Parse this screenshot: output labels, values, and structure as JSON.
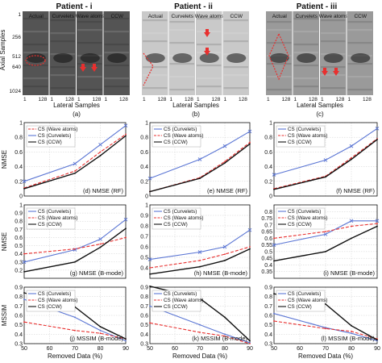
{
  "images": {
    "patients": [
      {
        "title": "Patient - i",
        "letter": "(a)"
      },
      {
        "title": "Patient - ii",
        "letter": "(b)"
      },
      {
        "title": "Patient - iii",
        "letter": "(c)"
      }
    ],
    "col_labels": [
      "Actual",
      "Curvelets",
      "Wave atoms",
      "CCW"
    ],
    "y_label": "Axial Samples",
    "x_label": "Lateral Samples",
    "y_ticks": [
      "256",
      "512",
      "640",
      "1024"
    ],
    "x_ticks": [
      "1",
      "128"
    ],
    "left_axis_top_tick": "1",
    "colors": {
      "patient_i_bg": "#545454",
      "patient_ii_bg": "#c9c9c9",
      "patient_iii_bg": "#9a9a9a",
      "roi": "#e8302f"
    }
  },
  "chart_data": [
    {
      "id": "d",
      "type": "line",
      "row": 0,
      "col": 0,
      "label": "(d) NMSE (RF)",
      "ylabel": "NMSE",
      "ylim": [
        0,
        1
      ],
      "yticks": [
        "0",
        "0.2",
        "0.4",
        "0.6",
        "0.8",
        "1"
      ],
      "x": [
        50,
        70,
        80,
        90
      ],
      "xticks": [],
      "legend": [
        "CS (Wave atoms)",
        "CS (Curvelets)",
        "CS (CCW)"
      ],
      "series": [
        {
          "name": "CS (Curvelets)",
          "color": "#5b76d4",
          "dash": "none",
          "marker": "x",
          "values": [
            0.2,
            0.44,
            0.7,
            0.96
          ]
        },
        {
          "name": "CS (Wave atoms)",
          "color": "#e8302f",
          "dash": "4,2",
          "marker": "none",
          "values": [
            0.11,
            0.34,
            0.6,
            0.84
          ]
        },
        {
          "name": "CS (CCW)",
          "color": "#111111",
          "dash": "none",
          "marker": "none",
          "values": [
            0.1,
            0.31,
            0.55,
            0.82
          ]
        }
      ]
    },
    {
      "id": "e",
      "type": "line",
      "row": 0,
      "col": 1,
      "label": "(e) NMSE (RF)",
      "ylabel": "",
      "ylim": [
        0,
        1
      ],
      "yticks": [
        "0",
        "0.2",
        "0.4",
        "0.6",
        "0.8",
        "1"
      ],
      "x": [
        50,
        70,
        80,
        90
      ],
      "xticks": [],
      "legend": [
        "CS (Curvelets)",
        "CS (Wave atoms)",
        "CS (CCW)"
      ],
      "series": [
        {
          "name": "CS (Curvelets)",
          "color": "#5b76d4",
          "dash": "none",
          "marker": "x",
          "values": [
            0.24,
            0.5,
            0.68,
            0.88
          ]
        },
        {
          "name": "CS (Wave atoms)",
          "color": "#e8302f",
          "dash": "4,2",
          "marker": "none",
          "values": [
            0.06,
            0.25,
            0.47,
            0.73
          ]
        },
        {
          "name": "CS (CCW)",
          "color": "#111111",
          "dash": "none",
          "marker": "none",
          "values": [
            0.06,
            0.24,
            0.45,
            0.71
          ]
        }
      ]
    },
    {
      "id": "f",
      "type": "line",
      "row": 0,
      "col": 2,
      "label": "(f) NMSE (RF)",
      "ylabel": "",
      "ylim": [
        0,
        1
      ],
      "yticks": [
        "0",
        "0.2",
        "0.4",
        "0.6",
        "0.8",
        "1"
      ],
      "x": [
        50,
        70,
        80,
        90
      ],
      "xticks": [],
      "legend": [
        "CS (Curvelets)",
        "CS (Wave atoms)",
        "CS (CCW)"
      ],
      "series": [
        {
          "name": "CS (Curvelets)",
          "color": "#5b76d4",
          "dash": "none",
          "marker": "x",
          "values": [
            0.29,
            0.49,
            0.68,
            0.92
          ]
        },
        {
          "name": "CS (Wave atoms)",
          "color": "#e8302f",
          "dash": "4,2",
          "marker": "none",
          "values": [
            0.1,
            0.27,
            0.52,
            0.78
          ]
        },
        {
          "name": "CS (CCW)",
          "color": "#111111",
          "dash": "none",
          "marker": "none",
          "values": [
            0.09,
            0.26,
            0.5,
            0.77
          ]
        }
      ]
    },
    {
      "id": "g",
      "type": "line",
      "row": 1,
      "col": 0,
      "label": "(g) NMSE (B-mode)",
      "ylabel": "NMSE",
      "ylim": [
        0.1,
        1
      ],
      "yticks": [
        "0.2",
        "0.3",
        "0.4",
        "0.5",
        "0.6",
        "0.7",
        "0.8",
        "0.9",
        "1"
      ],
      "x": [
        50,
        70,
        80,
        90
      ],
      "xticks": [],
      "legend": [
        "CS (Curvelets)",
        "CS (Wave atoms)",
        "CS (CCW)"
      ],
      "series": [
        {
          "name": "CS (Curvelets)",
          "color": "#5b76d4",
          "dash": "none",
          "marker": "x",
          "values": [
            0.3,
            0.45,
            0.58,
            0.82
          ]
        },
        {
          "name": "CS (Wave atoms)",
          "color": "#e8302f",
          "dash": "4,2",
          "marker": "none",
          "values": [
            0.4,
            0.46,
            0.52,
            0.6
          ]
        },
        {
          "name": "CS (CCW)",
          "color": "#111111",
          "dash": "none",
          "marker": "none",
          "values": [
            0.18,
            0.3,
            0.48,
            0.71
          ]
        }
      ]
    },
    {
      "id": "h",
      "type": "line",
      "row": 1,
      "col": 1,
      "label": "(h) NMSE (B-mode)",
      "ylabel": "",
      "ylim": [
        0.3,
        1
      ],
      "yticks": [
        "0.4",
        "0.5",
        "0.6",
        "0.7",
        "0.8",
        "0.9",
        "1"
      ],
      "x": [
        50,
        70,
        80,
        90
      ],
      "xticks": [],
      "legend": [
        "CS (Curvelets)",
        "CS (Wave atoms)",
        "CS (CCW)"
      ],
      "series": [
        {
          "name": "CS (Curvelets)",
          "color": "#5b76d4",
          "dash": "none",
          "marker": "x",
          "values": [
            0.48,
            0.55,
            0.6,
            0.76
          ]
        },
        {
          "name": "CS (Wave atoms)",
          "color": "#e8302f",
          "dash": "4,2",
          "marker": "none",
          "values": [
            0.4,
            0.47,
            0.53,
            0.6
          ]
        },
        {
          "name": "CS (CCW)",
          "color": "#111111",
          "dash": "none",
          "marker": "none",
          "values": [
            0.34,
            0.41,
            0.47,
            0.58
          ]
        }
      ]
    },
    {
      "id": "i",
      "type": "line",
      "row": 1,
      "col": 2,
      "label": "(i) NMSE (B-mode)",
      "ylabel": "",
      "ylim": [
        0.3,
        0.85
      ],
      "yticks": [
        "0.35",
        "0.4",
        "0.45",
        "0.5",
        "0.55",
        "0.6",
        "0.65",
        "0.7",
        "0.75",
        "0.8"
      ],
      "x": [
        50,
        70,
        80,
        90
      ],
      "xticks": [],
      "legend": [
        "CS (Curvelets)",
        "CS (Wave atoms)",
        "CS (CCW)"
      ],
      "series": [
        {
          "name": "CS (Curvelets)",
          "color": "#5b76d4",
          "dash": "none",
          "marker": "x",
          "values": [
            0.55,
            0.63,
            0.73,
            0.73
          ]
        },
        {
          "name": "CS (Wave atoms)",
          "color": "#e8302f",
          "dash": "4,2",
          "marker": "none",
          "values": [
            0.6,
            0.65,
            0.69,
            0.71
          ]
        },
        {
          "name": "CS (CCW)",
          "color": "#111111",
          "dash": "none",
          "marker": "none",
          "values": [
            0.43,
            0.5,
            0.6,
            0.69
          ]
        }
      ]
    },
    {
      "id": "j",
      "type": "line",
      "row": 2,
      "col": 0,
      "label": "(j) MSSIM (B-mode)",
      "ylabel": "MSSIM",
      "ylim": [
        0.3,
        0.9
      ],
      "yticks": [
        "0.3",
        "0.4",
        "0.5",
        "0.6",
        "0.7",
        "0.8",
        "0.9"
      ],
      "x": [
        50,
        70,
        80,
        90
      ],
      "xticks": [
        "50",
        "60",
        "70",
        "80",
        "90"
      ],
      "legend": [
        "CS (Curvelets)",
        "CS (Wave atoms)",
        "CS (CCW)"
      ],
      "series": [
        {
          "name": "CS (Curvelets)",
          "color": "#5b76d4",
          "dash": "none",
          "marker": "none",
          "values": [
            0.77,
            0.58,
            0.44,
            0.33
          ]
        },
        {
          "name": "CS (Wave atoms)",
          "color": "#e8302f",
          "dash": "4,2",
          "marker": "none",
          "values": [
            0.53,
            0.44,
            0.41,
            0.35
          ]
        },
        {
          "name": "CS (CCW)",
          "color": "#111111",
          "dash": "none",
          "marker": "none",
          "values": [
            0.84,
            0.69,
            0.48,
            0.35
          ]
        }
      ]
    },
    {
      "id": "k",
      "type": "line",
      "row": 2,
      "col": 1,
      "label": "(k) MSSIM (B-mode)",
      "ylabel": "",
      "ylim": [
        0.3,
        0.9
      ],
      "yticks": [
        "0.3",
        "0.4",
        "0.5",
        "0.6",
        "0.7",
        "0.8",
        "0.9"
      ],
      "x": [
        50,
        70,
        80,
        90
      ],
      "xticks": [
        "50",
        "60",
        "70",
        "80",
        "90"
      ],
      "legend": [
        "CS (Curvelets)",
        "CS (Wave atoms)",
        "CS (CCW)"
      ],
      "series": [
        {
          "name": "CS (Curvelets)",
          "color": "#5b76d4",
          "dash": "none",
          "marker": "none",
          "values": [
            0.7,
            0.5,
            0.4,
            0.31
          ]
        },
        {
          "name": "CS (Wave atoms)",
          "color": "#e8302f",
          "dash": "4,2",
          "marker": "none",
          "values": [
            0.52,
            0.42,
            0.38,
            0.3
          ]
        },
        {
          "name": "CS (CCW)",
          "color": "#111111",
          "dash": "none",
          "marker": "none",
          "values": [
            0.91,
            0.78,
            0.58,
            0.33
          ]
        }
      ]
    },
    {
      "id": "l",
      "type": "line",
      "row": 2,
      "col": 2,
      "label": "(l) MSSIM (B-mode)",
      "ylabel": "",
      "ylim": [
        0.3,
        0.9
      ],
      "yticks": [
        "0.3",
        "0.4",
        "0.5",
        "0.6",
        "0.7",
        "0.8",
        "0.9"
      ],
      "x": [
        50,
        70,
        80,
        90
      ],
      "xticks": [
        "50",
        "60",
        "70",
        "80",
        "90"
      ],
      "legend": [
        "CS (Curvelets)",
        "CS (Wave atoms)",
        "CS (CCW)"
      ],
      "series": [
        {
          "name": "CS (Curvelets)",
          "color": "#5b76d4",
          "dash": "none",
          "marker": "none",
          "values": [
            0.62,
            0.47,
            0.41,
            0.33
          ]
        },
        {
          "name": "CS (Wave atoms)",
          "color": "#e8302f",
          "dash": "4,2",
          "marker": "none",
          "values": [
            0.54,
            0.46,
            0.43,
            0.35
          ]
        },
        {
          "name": "CS (CCW)",
          "color": "#111111",
          "dash": "none",
          "marker": "none",
          "values": [
            0.83,
            0.72,
            0.49,
            0.34
          ]
        }
      ]
    }
  ],
  "removed_data_label": "Removed Data (%)"
}
